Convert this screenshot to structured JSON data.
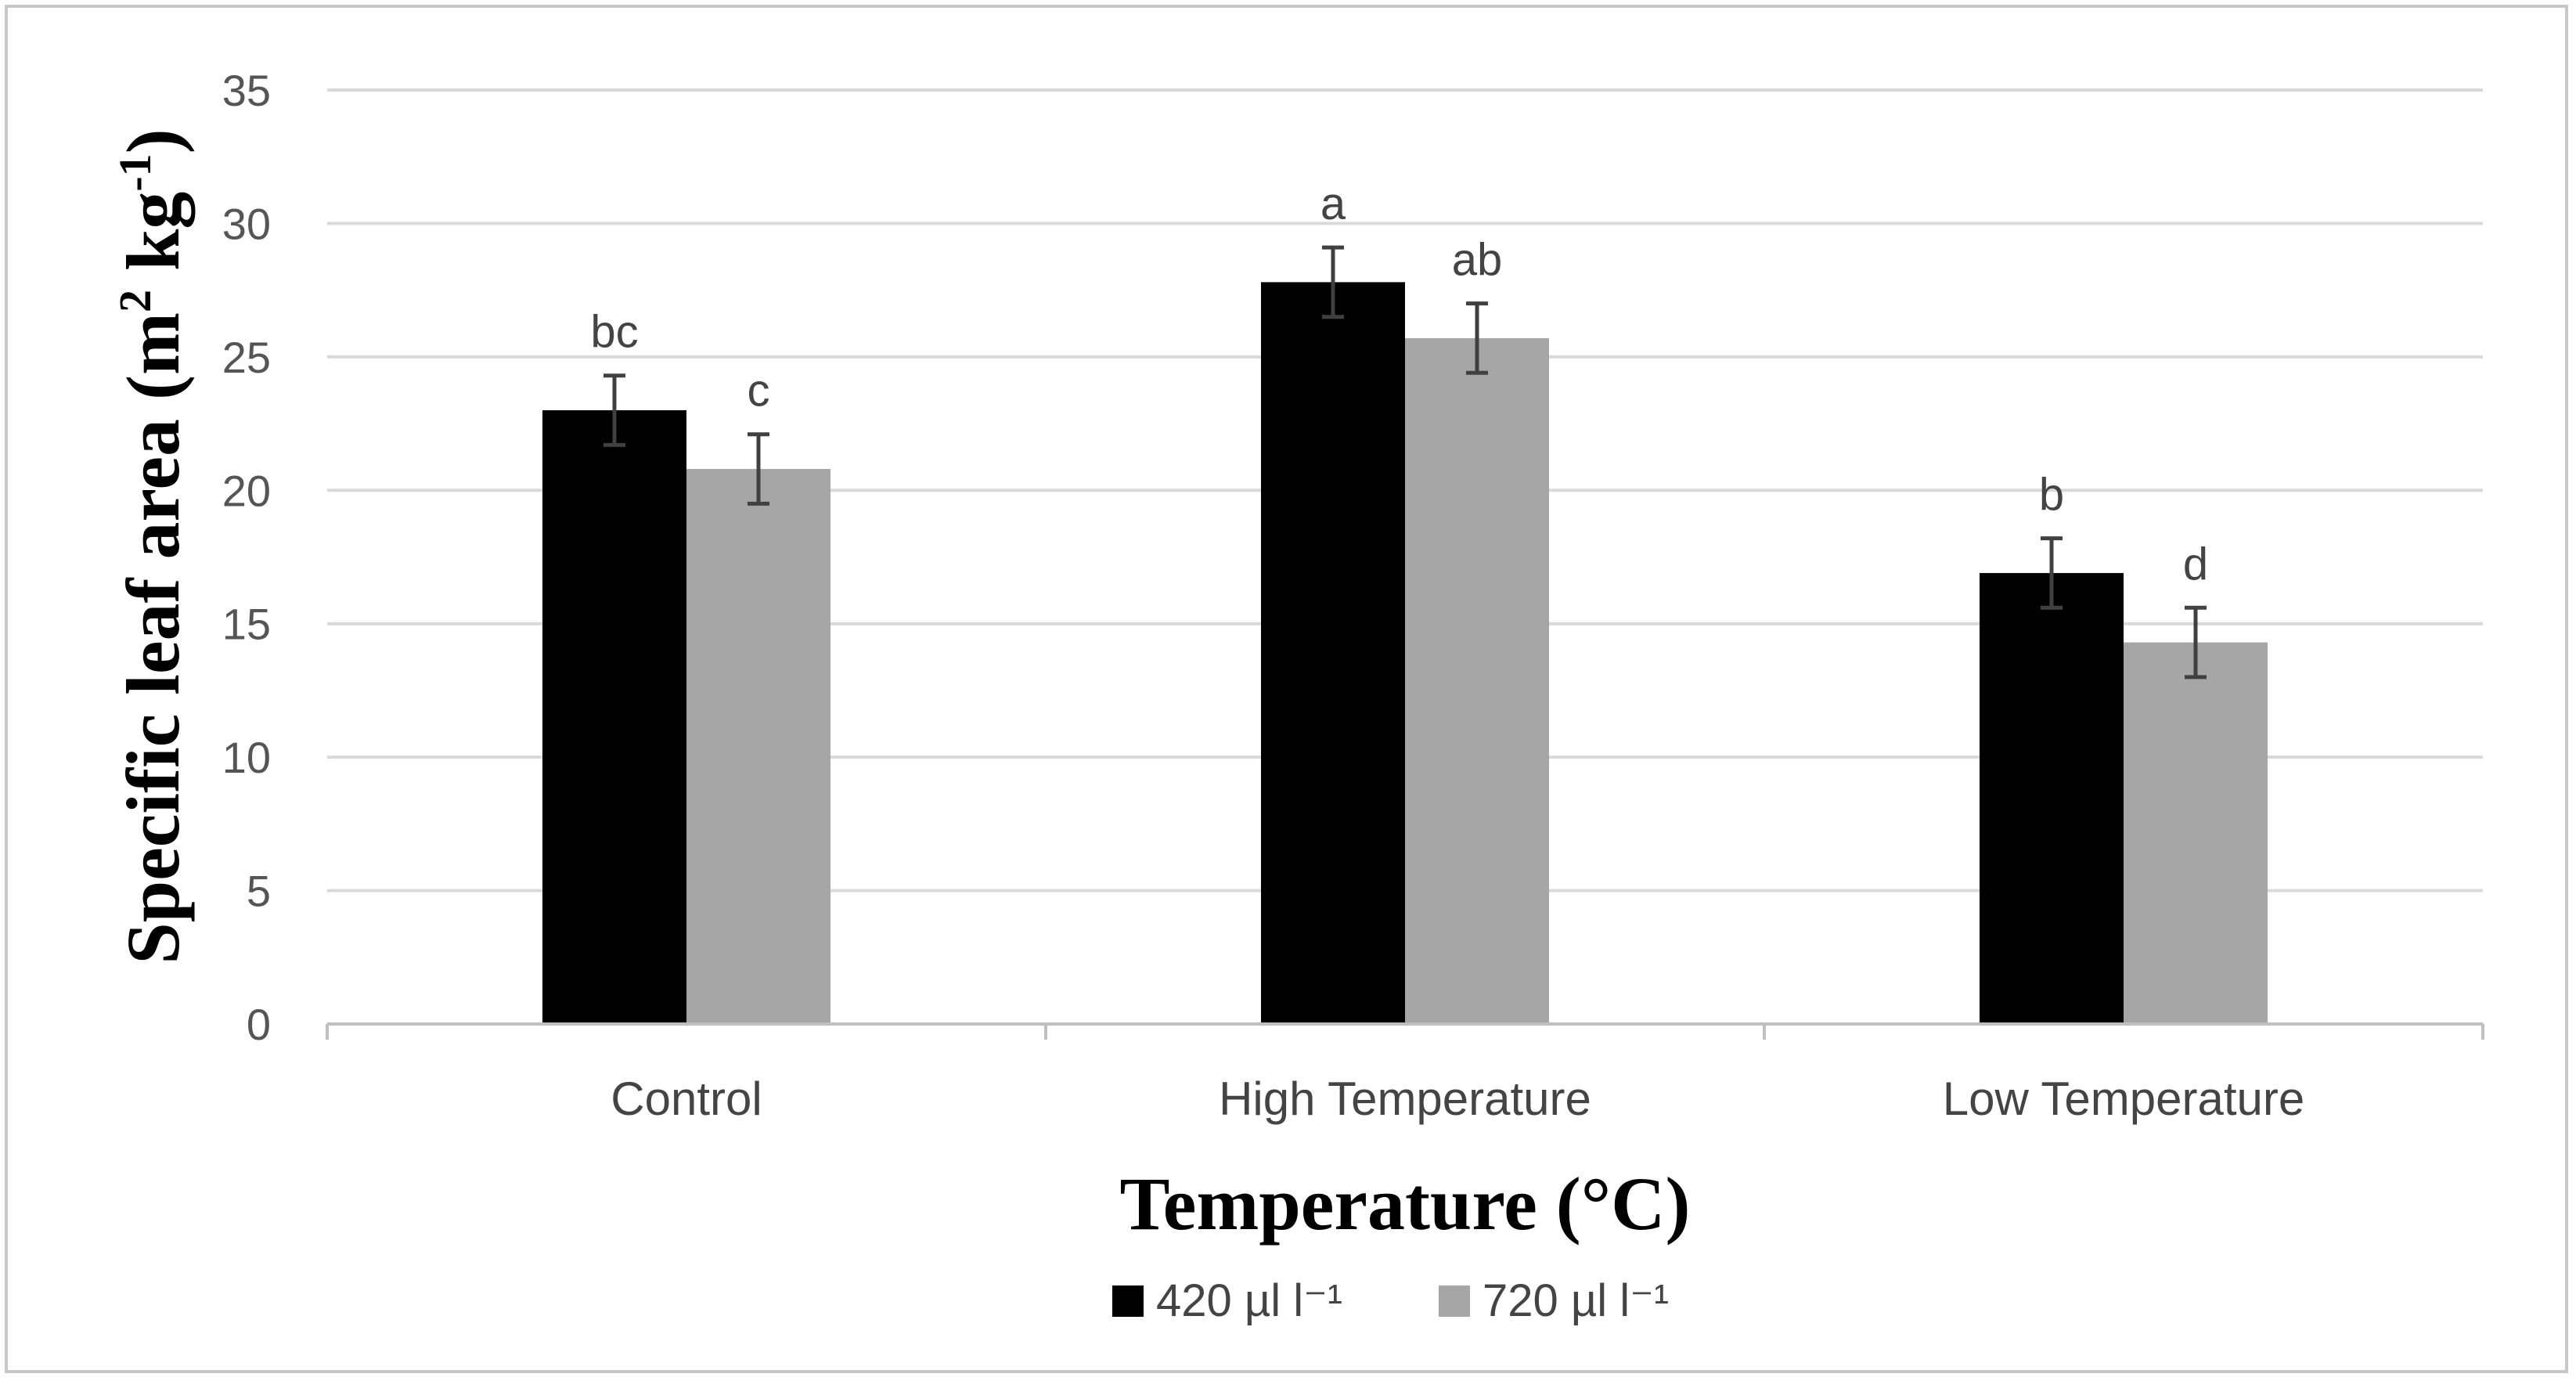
{
  "chart_data": {
    "type": "bar",
    "xlabel": "Temperature (°C)",
    "ylabel_main": "Specific leaf area (m",
    "ylabel_sup1": "2",
    "ylabel_mid": " kg",
    "ylabel_sup2": "-1",
    "ylabel_end": ")",
    "ylim": [
      0,
      35
    ],
    "yticks": [
      0,
      5,
      10,
      15,
      20,
      25,
      30,
      35
    ],
    "grid": true,
    "legend_position": "bottom",
    "categories": [
      "Control",
      "High Temperature",
      "Low Temperature"
    ],
    "series": [
      {
        "name": "420 µl l⁻¹",
        "color": "#000000",
        "values": [
          23.0,
          27.8,
          16.9
        ],
        "errors": [
          1.3,
          1.3,
          1.3
        ],
        "letters": [
          "bc",
          "a",
          "b"
        ]
      },
      {
        "name": "720 µl l⁻¹",
        "color": "#a6a6a6",
        "values": [
          20.8,
          25.7,
          14.3
        ],
        "errors": [
          1.3,
          1.3,
          1.3
        ],
        "letters": [
          "c",
          "ab",
          "d"
        ]
      }
    ],
    "colors": {
      "grid": "#d9d9d9",
      "axis": "#bfbfbf",
      "error_bar": "#404040"
    }
  }
}
